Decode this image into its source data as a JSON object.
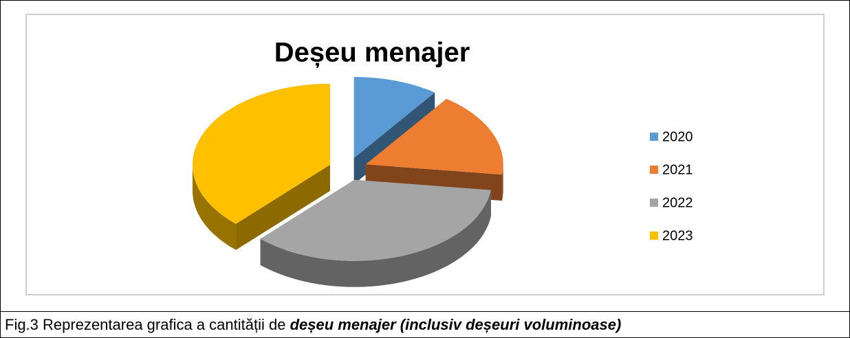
{
  "chart_data": {
    "type": "pie",
    "title": "Deșeu menajer",
    "categories": [
      "2020",
      "2021",
      "2022",
      "2023"
    ],
    "values": [
      10,
      17,
      35,
      38
    ],
    "colors": [
      "#5b9bd5",
      "#ed7d31",
      "#a5a5a5",
      "#ffc000"
    ],
    "legend": "right"
  },
  "caption": {
    "text": "Fig.3  Reprezentarea grafica a cantității de ",
    "emphasis": "deșeu menajer (inclusiv deșeuri voluminoase)"
  }
}
